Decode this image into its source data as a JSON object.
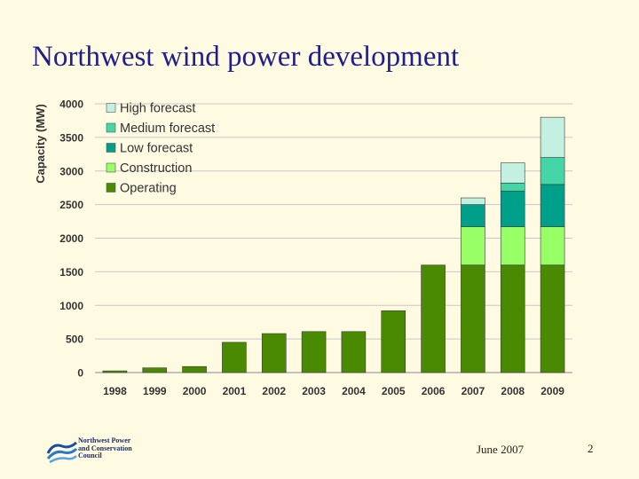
{
  "slide": {
    "title": "Northwest wind power development",
    "footer_date": "June 2007",
    "page_number": "2",
    "logo_text": "Northwest Power and Conservation Council"
  },
  "chart_data": {
    "type": "bar",
    "stacked": true,
    "title": "",
    "xlabel": "",
    "ylabel": "Capacity (MW)",
    "ylim": [
      0,
      4000
    ],
    "yticks": [
      0,
      500,
      1000,
      1500,
      2000,
      2500,
      3000,
      3500,
      4000
    ],
    "grid": true,
    "legend_position": "top-left",
    "categories": [
      "1998",
      "1999",
      "2000",
      "2001",
      "2002",
      "2003",
      "2004",
      "2005",
      "2006",
      "2007",
      "2008",
      "2009"
    ],
    "series": [
      {
        "name": "Operating",
        "color": "#4a8a00",
        "values": [
          25,
          70,
          90,
          450,
          580,
          610,
          610,
          920,
          1600,
          1600,
          1600,
          1600
        ]
      },
      {
        "name": "Construction",
        "color": "#99ff66",
        "values": [
          0,
          0,
          0,
          0,
          0,
          0,
          0,
          0,
          0,
          570,
          570,
          570
        ]
      },
      {
        "name": "Low forecast",
        "color": "#009f8a",
        "values": [
          0,
          0,
          0,
          0,
          0,
          0,
          0,
          0,
          0,
          330,
          530,
          630
        ]
      },
      {
        "name": "Medium forecast",
        "color": "#44d6a6",
        "values": [
          0,
          0,
          0,
          0,
          0,
          0,
          0,
          0,
          0,
          0,
          120,
          400
        ]
      },
      {
        "name": "High forecast",
        "color": "#c4f0e2",
        "values": [
          0,
          0,
          0,
          0,
          0,
          0,
          0,
          0,
          0,
          100,
          300,
          600
        ]
      }
    ]
  }
}
